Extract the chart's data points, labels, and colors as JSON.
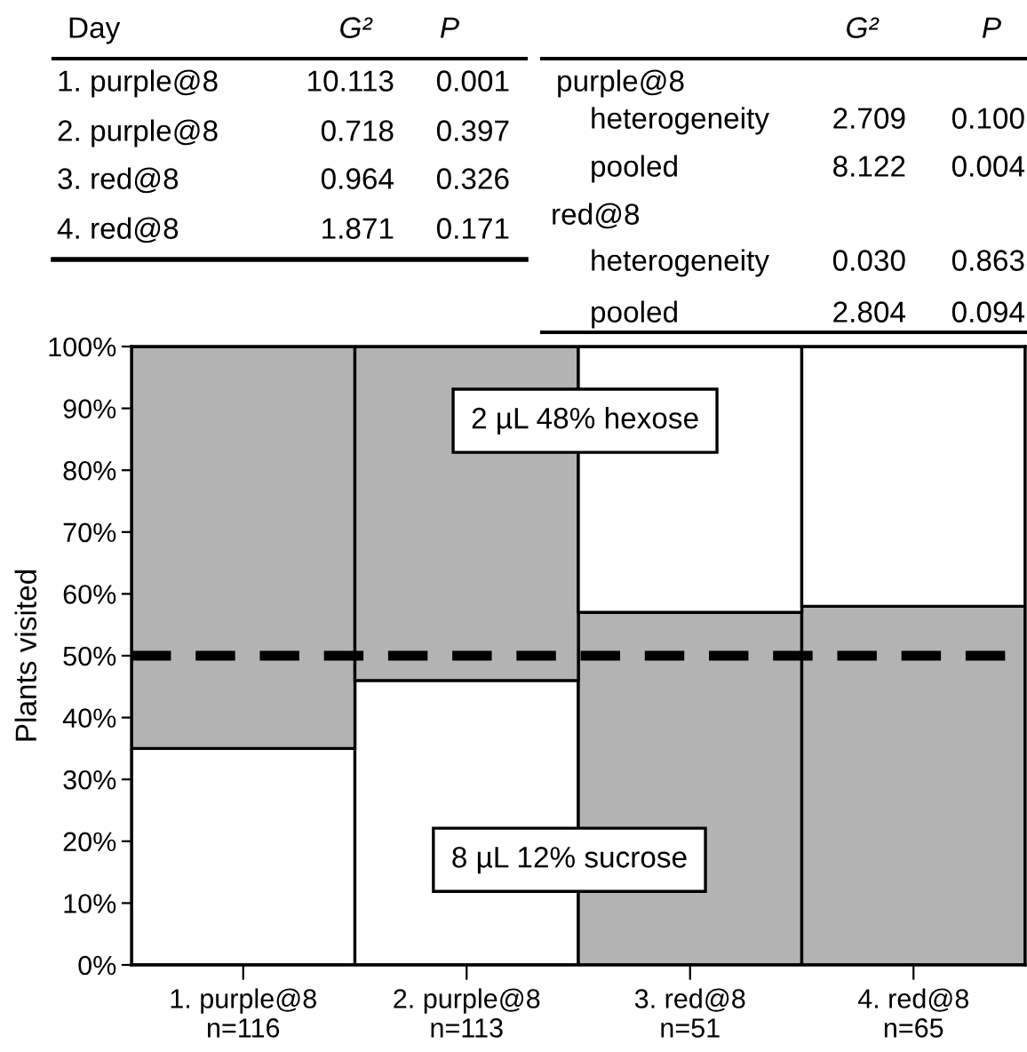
{
  "chart_data": {
    "type": "bar",
    "stacked": true,
    "ylabel": "Plants visited",
    "categories": [
      "1. purple@8\nn=116",
      "2. purple@8\nn=113",
      "3. red@8\nn=51",
      "4. red@8\nn=65"
    ],
    "series": [
      {
        "colors": [
          "#ffffff",
          "#ffffff",
          "#b3b3b3",
          "#b3b3b3"
        ],
        "values": [
          35,
          46,
          57,
          58
        ]
      },
      {
        "colors": [
          "#b3b3b3",
          "#b3b3b3",
          "#ffffff",
          "#ffffff"
        ],
        "values": [
          65,
          54,
          43,
          42
        ]
      }
    ],
    "ylim": [
      0,
      100
    ],
    "yticks": [
      {
        "value": 0,
        "label": "0%"
      },
      {
        "value": 10,
        "label": "10%"
      },
      {
        "value": 20,
        "label": "20%"
      },
      {
        "value": 30,
        "label": "30%"
      },
      {
        "value": 40,
        "label": "40%"
      },
      {
        "value": 50,
        "label": "50%"
      },
      {
        "value": 60,
        "label": "60%"
      },
      {
        "value": 70,
        "label": "70%"
      },
      {
        "value": 80,
        "label": "80%"
      },
      {
        "value": 90,
        "label": "90%"
      },
      {
        "value": 100,
        "label": "100%"
      }
    ],
    "ref_lines": [
      {
        "axis": "y",
        "value": 50,
        "color": "#000000",
        "line_style": "dashed"
      }
    ],
    "annotations": [
      "Day",
      "G²",
      "P",
      "1. purple@8",
      "10.113",
      "0.001",
      "2. purple@8",
      "0.718",
      "0.397",
      "3. red@8",
      "0.964",
      "0.326",
      "4. red@8",
      "1.871",
      "0.171",
      "G²",
      "P",
      "purple@8",
      "heterogeneity",
      "2.709",
      "0.100",
      "pooled",
      "8.122",
      "0.004",
      "red@8",
      "heterogeneity",
      "0.030",
      "0.863",
      "pooled",
      "2.804",
      "0.094",
      "2 µL 48% hexose",
      "8 µL 12% sucrose"
    ]
  }
}
